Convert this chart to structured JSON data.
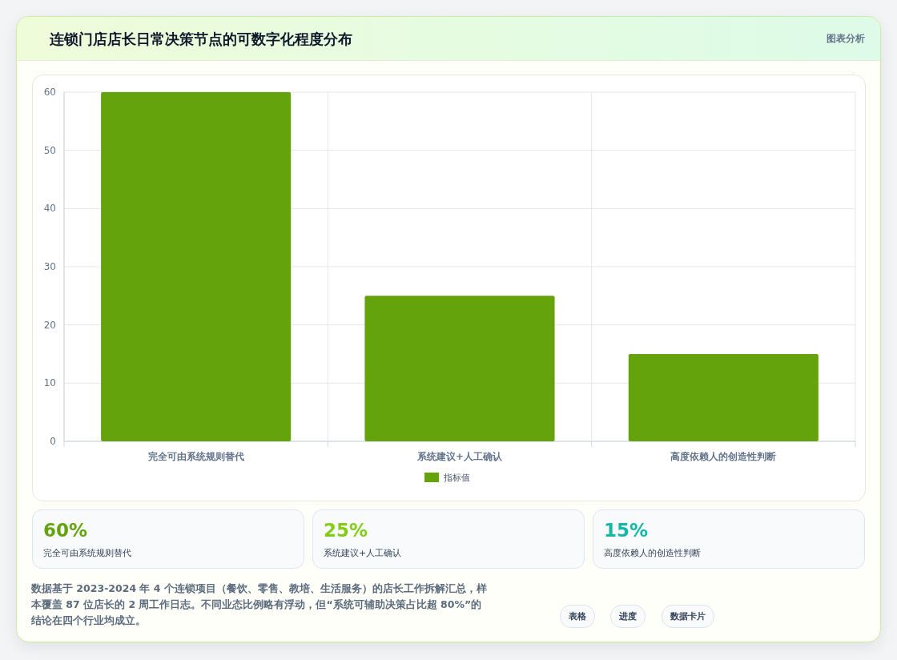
{
  "chart_data": {
    "type": "bar",
    "title": "连锁门店店长日常决策节点的可数字化程度分布",
    "categories": [
      "完全可由系统规则替代",
      "系统建议+人工确认",
      "高度依赖人的创造性判断"
    ],
    "series": [
      {
        "name": "指标值",
        "color": "#65a30d",
        "values": [
          60,
          25,
          15
        ]
      }
    ],
    "ylim": [
      0,
      60
    ],
    "yticks": [
      0,
      10,
      20,
      30,
      40,
      50,
      60
    ],
    "grid": true,
    "legend": "bottom",
    "annotations": [
      "图表分析",
      "60%",
      "完全可由系统规则替代",
      "25%",
      "系统建议+人工确认",
      "15%",
      "高度依赖人的创造性判断",
      "数据基于 2023-2024 年 4 个连锁项目（餐饮、零售、教培、生活服务）的店长工作拆解汇总，样本覆盖 87 位店长的 2 周工作日志。不同业态比例略有浮动，但“系统可辅助决策占比超 80%”的结论在四个行业均成立。",
      "表格",
      "进度",
      "数据卡片"
    ]
  }
}
